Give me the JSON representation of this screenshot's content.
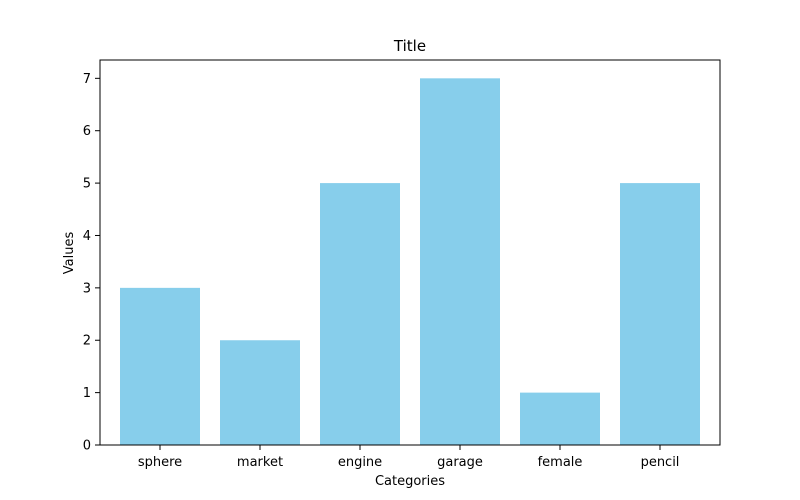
{
  "chart_data": {
    "type": "bar",
    "title": "Title",
    "xlabel": "Categories",
    "ylabel": "Values",
    "categories": [
      "sphere",
      "market",
      "engine",
      "garage",
      "female",
      "pencil"
    ],
    "values": [
      3,
      2,
      5,
      7,
      1,
      5
    ],
    "ylim": [
      0,
      7.35
    ],
    "yticks": [
      0,
      1,
      2,
      3,
      4,
      5,
      6,
      7
    ],
    "grid": false,
    "bar_color": "#87ceeb"
  }
}
